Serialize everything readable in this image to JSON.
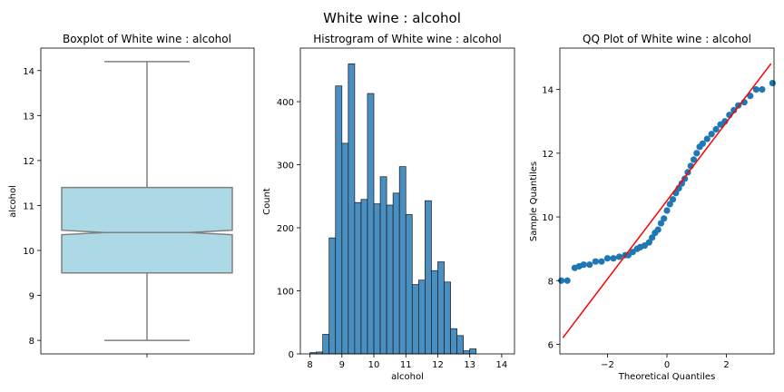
{
  "suptitle": "White wine : alcohol",
  "chart_data": [
    {
      "type": "box",
      "title": "Boxplot of White wine : alcohol",
      "xlabel": "",
      "ylabel": "alcohol",
      "ylim": [
        7.7,
        14.5
      ],
      "yticks": [
        8,
        9,
        10,
        11,
        12,
        13,
        14
      ],
      "stats": {
        "min": 8.0,
        "q1": 9.5,
        "median": 10.4,
        "q3": 11.4,
        "max": 14.2,
        "notch_low": 10.35,
        "notch_high": 10.45
      },
      "box_color": "#add8e6",
      "line_color": "#808080"
    },
    {
      "type": "bar",
      "title": "Histrogram of White wine : alcohol",
      "xlabel": "alcohol",
      "ylabel": "Count",
      "xlim": [
        7.7,
        14.4
      ],
      "ylim": [
        0,
        485
      ],
      "xticks": [
        8,
        9,
        10,
        11,
        12,
        13,
        14
      ],
      "yticks": [
        0,
        100,
        200,
        300,
        400
      ],
      "bin_start": 8.0,
      "bin_width": 0.2,
      "counts": [
        2,
        3,
        31,
        184,
        425,
        334,
        460,
        240,
        245,
        413,
        238,
        281,
        236,
        255,
        297,
        221,
        110,
        117,
        243,
        132,
        146,
        114,
        40,
        29,
        5,
        8
      ],
      "bar_color": "#4a8fc1"
    },
    {
      "type": "scatter",
      "title": "QQ Plot of White wine : alcohol",
      "xlabel": "Theoretical Quantiles",
      "ylabel": "Sample Quantiles",
      "xlim": [
        -3.6,
        3.6
      ],
      "ylim": [
        5.7,
        15.3
      ],
      "xticks": [
        -2,
        0,
        2
      ],
      "yticks": [
        6,
        8,
        10,
        12,
        14
      ],
      "points": [
        [
          -3.55,
          8.0
        ],
        [
          -3.35,
          8.0
        ],
        [
          -3.1,
          8.4
        ],
        [
          -2.95,
          8.45
        ],
        [
          -2.8,
          8.5
        ],
        [
          -2.6,
          8.5
        ],
        [
          -2.4,
          8.6
        ],
        [
          -2.2,
          8.6
        ],
        [
          -2.0,
          8.7
        ],
        [
          -1.8,
          8.7
        ],
        [
          -1.6,
          8.75
        ],
        [
          -1.4,
          8.8
        ],
        [
          -1.3,
          8.8
        ],
        [
          -1.15,
          8.9
        ],
        [
          -1.0,
          9.0
        ],
        [
          -0.9,
          9.05
        ],
        [
          -0.75,
          9.1
        ],
        [
          -0.6,
          9.2
        ],
        [
          -0.5,
          9.35
        ],
        [
          -0.4,
          9.5
        ],
        [
          -0.3,
          9.6
        ],
        [
          -0.2,
          9.8
        ],
        [
          -0.1,
          9.95
        ],
        [
          0.0,
          10.2
        ],
        [
          0.1,
          10.4
        ],
        [
          0.2,
          10.55
        ],
        [
          0.3,
          10.75
        ],
        [
          0.4,
          10.9
        ],
        [
          0.5,
          11.05
        ],
        [
          0.6,
          11.2
        ],
        [
          0.7,
          11.4
        ],
        [
          0.8,
          11.6
        ],
        [
          0.9,
          11.8
        ],
        [
          1.0,
          12.0
        ],
        [
          1.1,
          12.2
        ],
        [
          1.2,
          12.3
        ],
        [
          1.35,
          12.45
        ],
        [
          1.5,
          12.6
        ],
        [
          1.65,
          12.75
        ],
        [
          1.8,
          12.9
        ],
        [
          1.95,
          13.0
        ],
        [
          2.1,
          13.2
        ],
        [
          2.25,
          13.35
        ],
        [
          2.4,
          13.5
        ],
        [
          2.6,
          13.6
        ],
        [
          2.8,
          13.8
        ],
        [
          3.0,
          14.0
        ],
        [
          3.2,
          14.0
        ],
        [
          3.55,
          14.2
        ]
      ],
      "line": {
        "slope": 1.23,
        "intercept": 10.51
      },
      "point_color": "#1f77b4",
      "line_color": "#ff0000"
    }
  ]
}
